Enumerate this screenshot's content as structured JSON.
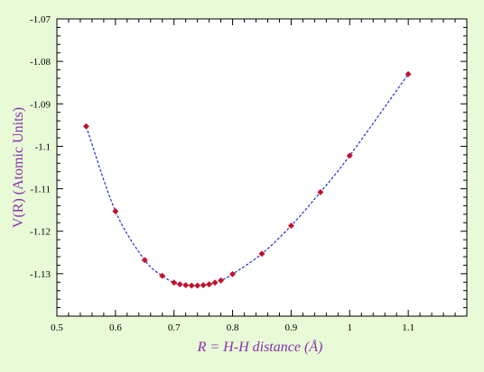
{
  "colors": {
    "page_background": "#e8fbd6",
    "plot_background": "#ffffff",
    "axis_title": "#8a2fb0",
    "marker": "#c4102a",
    "curve": "#1c2fd0"
  },
  "chart_data": {
    "type": "scatter",
    "title": "",
    "xlabel": "R = H-H distance (Å)",
    "ylabel": "V(R) (Atomic Units)",
    "xlim": [
      0.5,
      1.2
    ],
    "ylim": [
      -1.14,
      -1.07
    ],
    "xticks": [
      0.5,
      0.6,
      0.7,
      0.8,
      0.9,
      1,
      1.1
    ],
    "xtick_labels": [
      "0.5",
      "0.6",
      "0.7",
      "0.8",
      "0.9",
      "1",
      "1.1"
    ],
    "yticks": [
      -1.13,
      -1.12,
      -1.11,
      -1.1,
      -1.09,
      -1.08,
      -1.07
    ],
    "ytick_labels": [
      "-1.13",
      "-1.12",
      "-1.11",
      "-1.1",
      "-1.09",
      "-1.08",
      "-1.07"
    ],
    "grid": false,
    "legend": "none",
    "series": [
      {
        "marker": "diamond",
        "line": "dashed",
        "x": [
          0.55,
          0.6,
          0.65,
          0.68,
          0.7,
          0.71,
          0.72,
          0.73,
          0.74,
          0.75,
          0.76,
          0.77,
          0.78,
          0.8,
          0.85,
          0.9,
          0.95,
          1.0,
          1.1
        ],
        "y": [
          -1.0953,
          -1.1153,
          -1.1268,
          -1.1305,
          -1.1321,
          -1.1325,
          -1.1327,
          -1.1328,
          -1.1328,
          -1.1327,
          -1.1325,
          -1.1321,
          -1.1316,
          -1.1301,
          -1.1253,
          -1.1187,
          -1.1108,
          -1.1022,
          -1.083
        ]
      }
    ]
  }
}
